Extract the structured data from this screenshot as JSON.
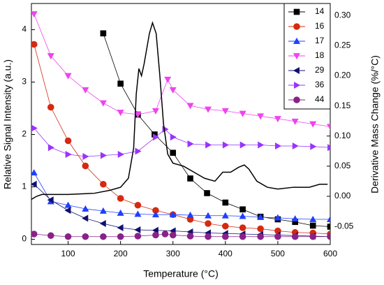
{
  "chart_data": {
    "type": "line",
    "x_label": "Temperature (°C)",
    "y_label": "Relative Signal Intensity (a.u.)",
    "y2_label": "Derivative Mass Change (%/°C)",
    "xlim": [
      30,
      600
    ],
    "xticks": [
      100,
      200,
      300,
      400,
      500,
      600
    ],
    "ylim": [
      -0.1,
      4.5
    ],
    "yticks": [
      0,
      1,
      2,
      3,
      4
    ],
    "y2lim": [
      -0.08,
      0.32
    ],
    "y2ticks": [
      {
        "value": -0.05,
        "label": "-0.05"
      },
      {
        "value": 0,
        "label": "0.00"
      },
      {
        "value": 0.05,
        "label": "0.05"
      },
      {
        "value": 0.1,
        "label": "0.10"
      },
      {
        "value": 0.15,
        "label": "0.15"
      },
      {
        "value": 0.2,
        "label": "0.20"
      },
      {
        "value": 0.25,
        "label": "0.25"
      },
      {
        "value": 0.3,
        "label": "0.30"
      }
    ],
    "legend": "upper right",
    "series": [
      {
        "name": "14",
        "color": "#000000",
        "marker": "square",
        "x": [
          167,
          200,
          233,
          265,
          300,
          333,
          365,
          400,
          433,
          467,
          500,
          533,
          567,
          600
        ],
        "values": [
          3.93,
          2.97,
          2.38,
          2.0,
          1.65,
          1.16,
          0.88,
          0.7,
          0.57,
          0.43,
          0.38,
          0.33,
          0.26,
          0.24
        ]
      },
      {
        "name": "16",
        "color": "#d42a10",
        "marker": "circle",
        "x": [
          35,
          67,
          100,
          133,
          167,
          200,
          233,
          267,
          300,
          333,
          367,
          400,
          433,
          467,
          500,
          533,
          567,
          600
        ],
        "values": [
          3.72,
          2.52,
          1.88,
          1.4,
          1.05,
          0.78,
          0.65,
          0.55,
          0.47,
          0.38,
          0.3,
          0.25,
          0.22,
          0.2,
          0.16,
          0.13,
          0.12,
          0.1
        ]
      },
      {
        "name": "17",
        "color": "#1f3fff",
        "marker": "up",
        "x": [
          35,
          67,
          100,
          133,
          167,
          200,
          233,
          267,
          300,
          333,
          367,
          400,
          433,
          467,
          500,
          533,
          567,
          600
        ],
        "values": [
          1.27,
          0.72,
          0.65,
          0.58,
          0.54,
          0.5,
          0.48,
          0.47,
          0.47,
          0.46,
          0.45,
          0.45,
          0.44,
          0.42,
          0.41,
          0.39,
          0.38,
          0.38
        ]
      },
      {
        "name": "18",
        "color": "#ee44ee",
        "marker": "down",
        "x": [
          35,
          67,
          100,
          133,
          167,
          200,
          233,
          267,
          290,
          300,
          333,
          367,
          400,
          433,
          467,
          500,
          533,
          567,
          600
        ],
        "values": [
          4.3,
          3.5,
          3.12,
          2.85,
          2.6,
          2.42,
          2.38,
          2.45,
          3.05,
          2.85,
          2.55,
          2.48,
          2.45,
          2.4,
          2.35,
          2.3,
          2.25,
          2.2,
          2.15
        ]
      },
      {
        "name": "29",
        "color": "#101070",
        "marker": "left",
        "x": [
          35,
          67,
          100,
          133,
          167,
          200,
          233,
          267,
          300,
          333,
          367,
          400,
          433,
          467,
          500,
          533,
          567,
          600
        ],
        "values": [
          1.05,
          0.75,
          0.55,
          0.4,
          0.3,
          0.22,
          0.18,
          0.17,
          0.16,
          0.14,
          0.12,
          0.11,
          0.1,
          0.09,
          0.08,
          0.07,
          0.06,
          0.05
        ]
      },
      {
        "name": "36",
        "color": "#9933ff",
        "marker": "right",
        "x": [
          35,
          67,
          100,
          133,
          167,
          200,
          233,
          267,
          285,
          300,
          333,
          367,
          400,
          433,
          467,
          500,
          533,
          567,
          600
        ],
        "values": [
          2.12,
          1.75,
          1.62,
          1.58,
          1.6,
          1.62,
          1.68,
          1.95,
          2.1,
          1.95,
          1.82,
          1.8,
          1.8,
          1.8,
          1.8,
          1.78,
          1.78,
          1.77,
          1.75
        ]
      },
      {
        "name": "44",
        "color": "#882288",
        "marker": "circle",
        "x": [
          35,
          67,
          100,
          133,
          167,
          200,
          233,
          267,
          285,
          300,
          333,
          367,
          400,
          433,
          467,
          500,
          533,
          567,
          600
        ],
        "values": [
          0.1,
          0.07,
          0.05,
          0.05,
          0.05,
          0.05,
          0.06,
          0.08,
          0.1,
          0.08,
          0.06,
          0.05,
          0.05,
          0.05,
          0.05,
          0.05,
          0.05,
          0.05,
          0.05
        ]
      },
      {
        "color": "#000000",
        "marker": "none",
        "axis": "y2",
        "x": [
          30,
          40,
          50,
          100,
          150,
          180,
          200,
          215,
          225,
          230,
          235,
          240,
          245,
          255,
          261,
          268,
          275,
          282,
          290,
          300,
          320,
          340,
          360,
          380,
          395,
          410,
          425,
          436,
          445,
          460,
          480,
          500,
          530,
          560,
          580,
          595
        ],
        "values": [
          -0.005,
          0.0,
          0.003,
          0.003,
          0.005,
          0.01,
          0.015,
          0.03,
          0.08,
          0.17,
          0.212,
          0.2,
          0.22,
          0.27,
          0.288,
          0.27,
          0.2,
          0.12,
          0.07,
          0.055,
          0.05,
          0.04,
          0.03,
          0.025,
          0.04,
          0.04,
          0.048,
          0.052,
          0.045,
          0.025,
          0.015,
          0.012,
          0.015,
          0.015,
          0.02,
          0.02
        ]
      }
    ]
  }
}
